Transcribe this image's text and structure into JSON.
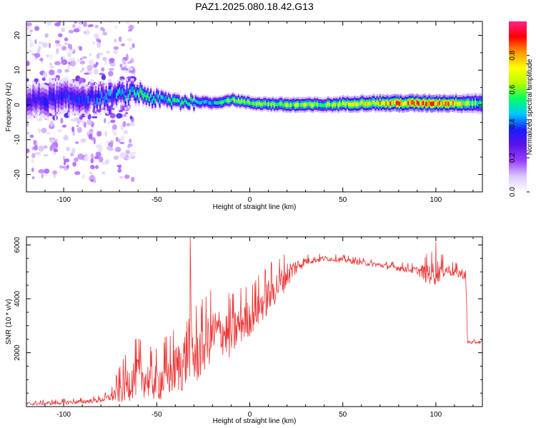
{
  "title": "PAZ1.2025.080.18.42.G13",
  "colors": {
    "snr_line": "#ee3333",
    "spectrogram_palette": [
      "#ffffff",
      "#dcc8ff",
      "#9a40ff",
      "#5a14e6",
      "#1a1aff",
      "#00c8ff",
      "#00ff66",
      "#b4ff00",
      "#ffff00",
      "#ff9900",
      "#ff0000",
      "#ff2288"
    ]
  },
  "chart_data": [
    {
      "type": "heatmap",
      "title": "PAZ1.2025.080.18.42.G13",
      "xlabel": "Height of straight line (km)",
      "ylabel": "Frequency (Hz)",
      "xlim": [
        -120,
        125
      ],
      "ylim": [
        -25,
        24
      ],
      "xticks": [
        -100,
        -50,
        0,
        50,
        100
      ],
      "yticks": [
        -20,
        -10,
        0,
        10,
        20
      ],
      "colorbar": {
        "label": "Normalized spectral amplitude",
        "range": [
          0,
          1
        ],
        "ticks": [
          "0.0",
          "0.2",
          "0.4",
          "0.6",
          "0.8"
        ]
      },
      "ridge": {
        "x": [
          -120,
          -100,
          -80,
          -70,
          -60,
          -50,
          -40,
          -30,
          -20,
          -10,
          0,
          20,
          40,
          60,
          80,
          100,
          110,
          125
        ],
        "frequency_hz": [
          1,
          2,
          2,
          3,
          3.5,
          1.5,
          1,
          1,
          0.5,
          1.5,
          0.5,
          0,
          0,
          0.5,
          0.5,
          0.5,
          0.5,
          0.5
        ],
        "peak_amplitude": [
          0.35,
          0.4,
          0.45,
          0.5,
          0.6,
          0.55,
          0.6,
          0.6,
          0.55,
          0.7,
          0.65,
          0.75,
          0.7,
          0.8,
          0.95,
          0.95,
          0.9,
          0.55
        ],
        "width_hz": [
          5,
          5,
          4,
          3.5,
          3,
          2.5,
          2.2,
          2,
          2,
          2,
          2,
          2.2,
          2.2,
          2.4,
          2.5,
          2.5,
          2.5,
          3
        ]
      },
      "scatter_region": {
        "x": [
          -120,
          -62
        ],
        "frequency_hz": [
          -25,
          24
        ],
        "peak_amplitude": 0.25
      }
    },
    {
      "type": "line",
      "xlabel": "Height of straight line (km)",
      "ylabel": "SNR (10 * v/v)",
      "xlim": [
        -120,
        125
      ],
      "ylim": [
        0,
        6300
      ],
      "xticks": [
        -100,
        -50,
        0,
        50,
        100
      ],
      "yticks": [
        2000,
        4000,
        6000
      ],
      "series": [
        {
          "x": [
            -120,
            -100,
            -90,
            -80,
            -75,
            -70,
            -65,
            -60,
            -55,
            -50,
            -45,
            -40,
            -35,
            -32,
            -30,
            -25,
            -20,
            -15,
            -10,
            -5,
            0,
            5,
            10,
            15,
            20,
            25,
            30,
            40,
            50,
            60,
            70,
            80,
            90,
            95,
            100,
            105,
            110,
            116,
            117,
            120,
            125
          ],
          "y": [
            100,
            150,
            180,
            250,
            350,
            600,
            900,
            1200,
            1000,
            900,
            1100,
            1400,
            1700,
            2600,
            1800,
            2200,
            2700,
            2800,
            2600,
            3100,
            3300,
            3700,
            4100,
            4500,
            4900,
            5200,
            5400,
            5500,
            5450,
            5350,
            5250,
            5150,
            5050,
            4950,
            5000,
            5100,
            5000,
            4900,
            2400,
            2380,
            2400
          ],
          "noise_amplitude": [
            60,
            80,
            80,
            100,
            150,
            500,
            700,
            800,
            700,
            700,
            900,
            900,
            1200,
            1500,
            1200,
            1000,
            1000,
            900,
            900,
            800,
            700,
            700,
            700,
            600,
            500,
            300,
            150,
            100,
            100,
            100,
            100,
            120,
            150,
            400,
            500,
            250,
            200,
            200,
            80,
            60,
            60
          ],
          "spikes": [
            {
              "x": -32,
              "y": 6300
            },
            {
              "x": 100,
              "y": 6100
            }
          ]
        }
      ]
    }
  ]
}
